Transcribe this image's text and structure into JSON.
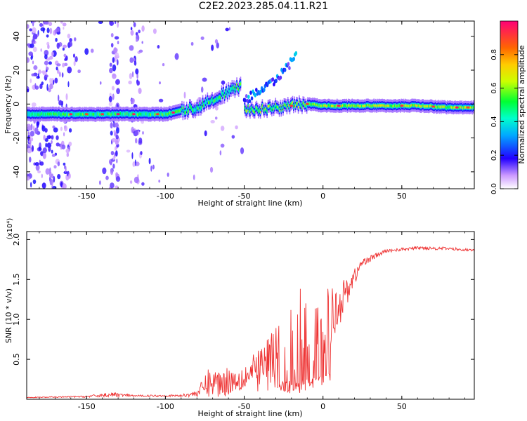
{
  "title": "C2E2.2023.285.04.11.R21",
  "chart_data": [
    {
      "type": "heatmap",
      "xlabel": "Height of straight line (km)",
      "ylabel": "Frequency (Hz)",
      "xlim": [
        -188,
        96
      ],
      "ylim": [
        -50,
        49
      ],
      "x_ticks": [
        -150,
        -100,
        -50,
        0,
        50
      ],
      "y_ticks": [
        -40,
        -20,
        0,
        20,
        40
      ],
      "colorbar": {
        "label": "Normalized spectral amplitude",
        "range": [
          0,
          1
        ],
        "ticks": [
          0.0,
          0.2,
          0.4,
          0.6,
          0.8
        ]
      },
      "ridge": [
        {
          "x": -185,
          "f": -6
        },
        {
          "x": -160,
          "f": -6
        },
        {
          "x": -140,
          "f": -6
        },
        {
          "x": -120,
          "f": -6
        },
        {
          "x": -100,
          "f": -6
        },
        {
          "x": -90,
          "f": -4
        },
        {
          "x": -80,
          "f": -2
        },
        {
          "x": -70,
          "f": 3
        },
        {
          "x": -60,
          "f": 7
        },
        {
          "x": -52,
          "f": 11
        },
        {
          "x": -50,
          "f": -3
        },
        {
          "x": -40,
          "f": -3
        },
        {
          "x": -30,
          "f": -2
        },
        {
          "x": -20,
          "f": -1
        },
        {
          "x": -10,
          "f": 0
        },
        {
          "x": 0,
          "f": -1
        },
        {
          "x": 20,
          "f": -1
        },
        {
          "x": 40,
          "f": -1
        },
        {
          "x": 60,
          "f": -1
        },
        {
          "x": 80,
          "f": -2
        },
        {
          "x": 95,
          "f": -2
        }
      ],
      "branch": [
        {
          "x": -50,
          "f": 2
        },
        {
          "x": -40,
          "f": 8
        },
        {
          "x": -30,
          "f": 14
        },
        {
          "x": -22,
          "f": 22
        },
        {
          "x": -17,
          "f": 30
        }
      ]
    },
    {
      "type": "line",
      "xlabel": "Height of straight line (km)",
      "ylabel": "SNR (10 * v/v)",
      "multiplier": "(x10⁴)",
      "xlim": [
        -188,
        96
      ],
      "ylim": [
        0,
        2.1
      ],
      "x_ticks": [
        -150,
        -100,
        -50,
        0,
        50
      ],
      "y_ticks": [
        0.5,
        1.0,
        1.5,
        2.0
      ],
      "color": "#ee3333",
      "envelope": [
        {
          "x": -188,
          "base": 0.02,
          "amp": 0.01
        },
        {
          "x": -150,
          "base": 0.03,
          "amp": 0.02
        },
        {
          "x": -135,
          "base": 0.05,
          "amp": 0.06
        },
        {
          "x": -120,
          "base": 0.04,
          "amp": 0.02
        },
        {
          "x": -90,
          "base": 0.04,
          "amp": 0.03
        },
        {
          "x": -80,
          "base": 0.06,
          "amp": 0.08
        },
        {
          "x": -73,
          "base": 0.15,
          "amp": 0.35
        },
        {
          "x": -65,
          "base": 0.15,
          "amp": 0.4
        },
        {
          "x": -55,
          "base": 0.2,
          "amp": 0.3
        },
        {
          "x": -45,
          "base": 0.25,
          "amp": 0.45
        },
        {
          "x": -35,
          "base": 0.35,
          "amp": 0.7
        },
        {
          "x": -25,
          "base": 0.4,
          "amp": 1.4
        },
        {
          "x": -15,
          "base": 0.5,
          "amp": 1.5
        },
        {
          "x": -5,
          "base": 0.6,
          "amp": 1.1
        },
        {
          "x": 5,
          "base": 0.9,
          "amp": 0.8
        },
        {
          "x": 15,
          "base": 1.3,
          "amp": 0.35
        },
        {
          "x": 25,
          "base": 1.7,
          "amp": 0.1
        },
        {
          "x": 40,
          "base": 1.85,
          "amp": 0.04
        },
        {
          "x": 60,
          "base": 1.89,
          "amp": 0.04
        },
        {
          "x": 80,
          "base": 1.88,
          "amp": 0.04
        },
        {
          "x": 96,
          "base": 1.86,
          "amp": 0.03
        }
      ]
    }
  ]
}
